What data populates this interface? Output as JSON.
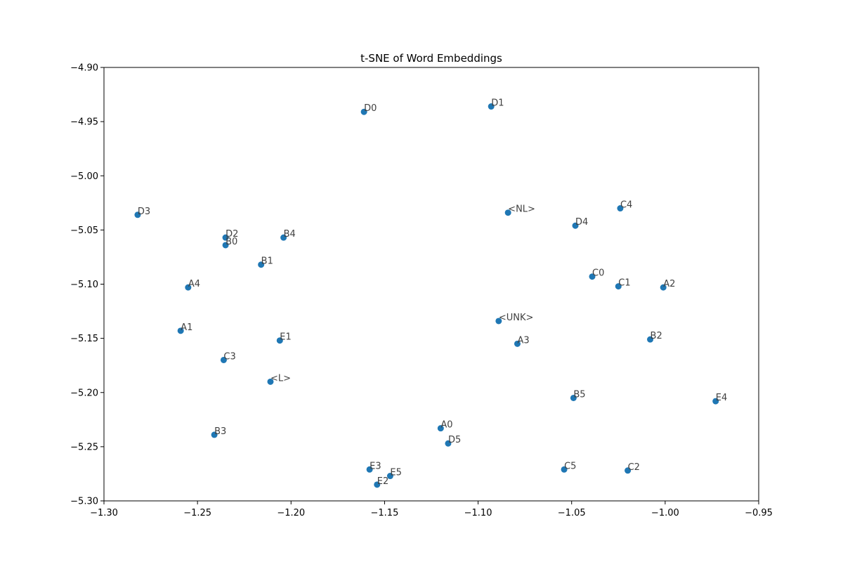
{
  "chart_data": {
    "type": "scatter",
    "title": "t-SNE of Word Embeddings",
    "xlabel": "",
    "ylabel": "",
    "xlim": [
      -1.3,
      -0.95
    ],
    "ylim": [
      -5.3,
      -4.9
    ],
    "grid": false,
    "marker_color": "#1f77b4",
    "x_ticks": [
      -1.3,
      -1.25,
      -1.2,
      -1.15,
      -1.1,
      -1.05,
      -1.0,
      -0.95
    ],
    "x_tick_labels": [
      "−1.30",
      "−1.25",
      "−1.20",
      "−1.15",
      "−1.10",
      "−1.05",
      "−1.00",
      "−0.95"
    ],
    "y_ticks": [
      -4.9,
      -4.95,
      -5.0,
      -5.05,
      -5.1,
      -5.15,
      -5.2,
      -5.25,
      -5.3
    ],
    "y_tick_labels": [
      "−4.90",
      "−4.95",
      "−5.00",
      "−5.05",
      "−5.10",
      "−5.15",
      "−5.20",
      "−5.25",
      "−5.30"
    ],
    "points": [
      {
        "label": "D0",
        "x": -1.161,
        "y": -4.941
      },
      {
        "label": "D1",
        "x": -1.093,
        "y": -4.936
      },
      {
        "label": "D3",
        "x": -1.282,
        "y": -5.036
      },
      {
        "label": "D2",
        "x": -1.235,
        "y": -5.057
      },
      {
        "label": "B0",
        "x": -1.235,
        "y": -5.064
      },
      {
        "label": "B4",
        "x": -1.204,
        "y": -5.057
      },
      {
        "label": "B1",
        "x": -1.216,
        "y": -5.082
      },
      {
        "label": "A4",
        "x": -1.255,
        "y": -5.103
      },
      {
        "label": "A1",
        "x": -1.259,
        "y": -5.143
      },
      {
        "label": "E1",
        "x": -1.206,
        "y": -5.152
      },
      {
        "label": "C3",
        "x": -1.236,
        "y": -5.17
      },
      {
        "label": "<L>",
        "x": -1.211,
        "y": -5.19
      },
      {
        "label": "B3",
        "x": -1.241,
        "y": -5.239
      },
      {
        "label": "<NL>",
        "x": -1.084,
        "y": -5.034
      },
      {
        "label": "C4",
        "x": -1.024,
        "y": -5.03
      },
      {
        "label": "D4",
        "x": -1.048,
        "y": -5.046
      },
      {
        "label": "C0",
        "x": -1.039,
        "y": -5.093
      },
      {
        "label": "C1",
        "x": -1.025,
        "y": -5.102
      },
      {
        "label": "A2",
        "x": -1.001,
        "y": -5.103
      },
      {
        "label": "<UNK>",
        "x": -1.089,
        "y": -5.134
      },
      {
        "label": "A3",
        "x": -1.079,
        "y": -5.155
      },
      {
        "label": "B2",
        "x": -1.008,
        "y": -5.151
      },
      {
        "label": "B5",
        "x": -1.049,
        "y": -5.205
      },
      {
        "label": "E4",
        "x": -0.973,
        "y": -5.208
      },
      {
        "label": "A0",
        "x": -1.12,
        "y": -5.233
      },
      {
        "label": "D5",
        "x": -1.116,
        "y": -5.247
      },
      {
        "label": "E3",
        "x": -1.158,
        "y": -5.271
      },
      {
        "label": "E5",
        "x": -1.147,
        "y": -5.277
      },
      {
        "label": "E2",
        "x": -1.154,
        "y": -5.285
      },
      {
        "label": "C5",
        "x": -1.054,
        "y": -5.271
      },
      {
        "label": "C2",
        "x": -1.02,
        "y": -5.272
      }
    ]
  }
}
